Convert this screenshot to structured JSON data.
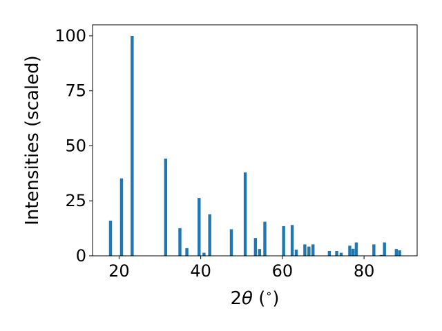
{
  "chart_data": {
    "type": "bar",
    "xlabel_prefix": "2",
    "xlabel_symbol": "θ",
    "xlabel_suffix": " (",
    "xlabel_unit": "∘",
    "xlabel_close": ")",
    "ylabel": "Intensities (scaled)",
    "xlim": [
      13.5,
      93
    ],
    "ylim": [
      0,
      105
    ],
    "xticks": [
      20,
      40,
      60,
      80
    ],
    "yticks": [
      0,
      25,
      50,
      75,
      100
    ],
    "bar_width": 0.75,
    "bar_color": "#1f77b4",
    "grid": false,
    "legend": "none",
    "x": [
      17.9,
      20.6,
      23.2,
      31.4,
      34.9,
      36.6,
      39.6,
      40.8,
      42.2,
      47.5,
      50.9,
      53.4,
      54.4,
      55.7,
      60.3,
      62.4,
      63.4,
      65.5,
      66.5,
      67.5,
      71.5,
      73.3,
      74.4,
      76.5,
      77.3,
      78.1,
      82.4,
      84.2,
      85.0,
      87.9,
      88.7
    ],
    "values": [
      16,
      35.2,
      100,
      44.2,
      12.6,
      3.5,
      26.3,
      1.4,
      18.9,
      12.1,
      37.9,
      8.1,
      3.1,
      15.5,
      13.5,
      14,
      2.8,
      5.2,
      4.2,
      5.2,
      2.2,
      2.2,
      1.4,
      4.6,
      3.2,
      6.1,
      5.2,
      0.4,
      6.1,
      3.1,
      2.5
    ]
  }
}
